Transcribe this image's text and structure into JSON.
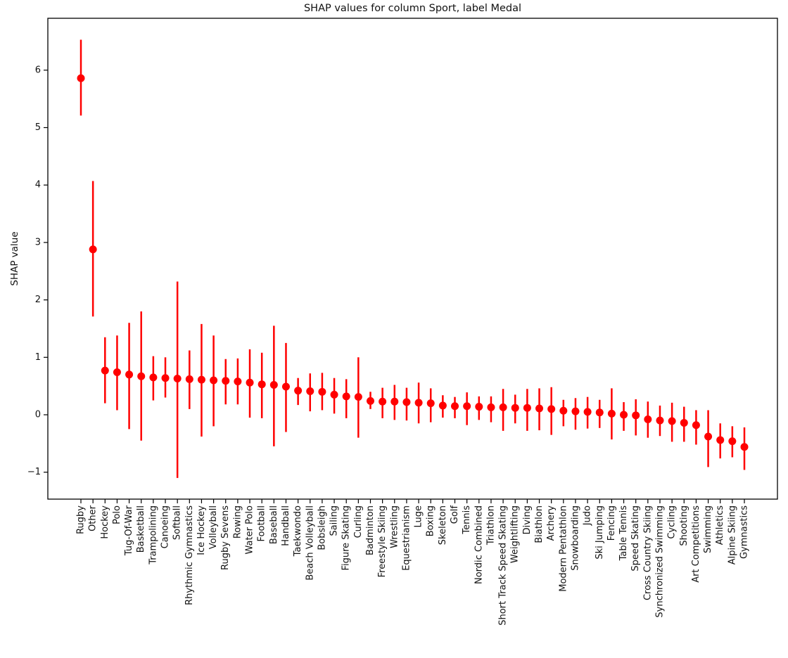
{
  "chart_data": {
    "type": "scatter",
    "title": "SHAP values for column Sport, label Medal",
    "xlabel": "",
    "ylabel": "SHAP value",
    "ylim": [
      -1.47,
      6.9
    ],
    "y_ticks": [
      -1,
      0,
      1,
      2,
      3,
      4,
      5,
      6
    ],
    "grid": false,
    "legend_position": "none",
    "marker": "circle",
    "color": "#ff0000",
    "error_bars": true,
    "categories": [
      "Rugby",
      "Other",
      "Hockey",
      "Polo",
      "Tug-Of-War",
      "Basketball",
      "Trampolining",
      "Canoeing",
      "Softball",
      "Rhythmic Gymnastics",
      "Ice Hockey",
      "Volleyball",
      "Rugby Sevens",
      "Rowing",
      "Water Polo",
      "Football",
      "Baseball",
      "Handball",
      "Taekwondo",
      "Beach Volleyball",
      "Bobsleigh",
      "Sailing",
      "Figure Skating",
      "Curling",
      "Badminton",
      "Freestyle Skiing",
      "Wrestling",
      "Equestrianism",
      "Luge",
      "Boxing",
      "Skeleton",
      "Golf",
      "Tennis",
      "Nordic Combined",
      "Triathlon",
      "Short Track Speed Skating",
      "Weightlifting",
      "Diving",
      "Biathlon",
      "Archery",
      "Modern Pentathlon",
      "Snowboarding",
      "Judo",
      "Ski Jumping",
      "Fencing",
      "Table Tennis",
      "Speed Skating",
      "Cross Country Skiing",
      "Synchronized Swimming",
      "Cycling",
      "Shooting",
      "Art Competitions",
      "Swimming",
      "Athletics",
      "Alpine Skiing",
      "Gymnastics"
    ],
    "series": [
      {
        "name": "SHAP value",
        "values": [
          5.86,
          2.88,
          0.77,
          0.74,
          0.7,
          0.67,
          0.65,
          0.64,
          0.63,
          0.62,
          0.61,
          0.6,
          0.59,
          0.58,
          0.56,
          0.53,
          0.52,
          0.49,
          0.42,
          0.41,
          0.4,
          0.35,
          0.32,
          0.31,
          0.24,
          0.23,
          0.23,
          0.22,
          0.21,
          0.2,
          0.16,
          0.15,
          0.15,
          0.14,
          0.13,
          0.13,
          0.12,
          0.12,
          0.11,
          0.1,
          0.07,
          0.06,
          0.05,
          0.04,
          0.02,
          0.0,
          -0.01,
          -0.08,
          -0.1,
          -0.11,
          -0.14,
          -0.18,
          -0.38,
          -0.44,
          -0.46,
          -0.56
        ],
        "error_low": [
          5.21,
          1.71,
          0.2,
          0.08,
          -0.25,
          -0.45,
          0.25,
          0.3,
          -1.1,
          0.1,
          -0.38,
          -0.2,
          0.18,
          0.18,
          -0.05,
          -0.06,
          -0.55,
          -0.3,
          0.17,
          0.06,
          0.08,
          0.02,
          -0.06,
          -0.4,
          0.1,
          -0.06,
          -0.09,
          -0.1,
          -0.15,
          -0.13,
          -0.05,
          -0.06,
          -0.18,
          -0.09,
          -0.13,
          -0.28,
          -0.15,
          -0.28,
          -0.27,
          -0.35,
          -0.2,
          -0.26,
          -0.24,
          -0.23,
          -0.43,
          -0.28,
          -0.36,
          -0.4,
          -0.37,
          -0.47,
          -0.47,
          -0.52,
          -0.91,
          -0.76,
          -0.74,
          -0.96
        ],
        "error_high": [
          6.53,
          4.07,
          1.35,
          1.38,
          1.6,
          1.8,
          1.02,
          1.0,
          2.32,
          1.12,
          1.58,
          1.38,
          0.97,
          0.98,
          1.14,
          1.08,
          1.55,
          1.25,
          0.64,
          0.72,
          0.73,
          0.64,
          0.62,
          1.0,
          0.4,
          0.47,
          0.52,
          0.47,
          0.56,
          0.46,
          0.34,
          0.31,
          0.39,
          0.32,
          0.32,
          0.45,
          0.35,
          0.45,
          0.46,
          0.48,
          0.26,
          0.29,
          0.31,
          0.26,
          0.46,
          0.22,
          0.27,
          0.23,
          0.16,
          0.21,
          0.14,
          0.08,
          0.08,
          -0.15,
          -0.2,
          -0.22
        ]
      }
    ]
  }
}
